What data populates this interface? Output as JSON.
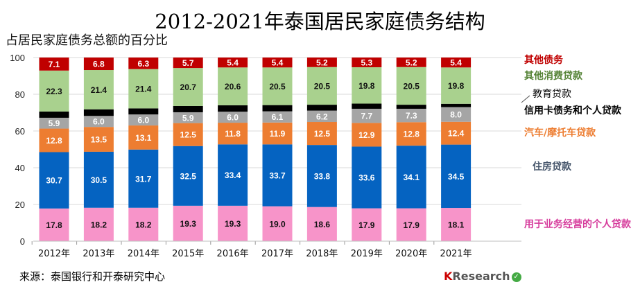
{
  "chart_data": {
    "type": "bar",
    "stacked": true,
    "title": "2012-2021年泰国居民家庭债务结构",
    "ylabel": "占居民家庭债务总额的百分比",
    "ylim": [
      0,
      100
    ],
    "yticks": [
      0,
      20,
      40,
      60,
      80,
      100
    ],
    "grid": true,
    "legend_position": "right",
    "categories": [
      "2012年",
      "2013年",
      "2014年",
      "2015年",
      "2016年",
      "2017年",
      "2018年",
      "2019年",
      "2020年",
      "2021年"
    ],
    "series": [
      {
        "name": "用于业务经营的个人贷款",
        "color": "#f794c9",
        "label_color": "#111111",
        "values": [
          17.8,
          18.2,
          18.2,
          19.3,
          19.3,
          19.0,
          18.6,
          17.9,
          17.9,
          18.1
        ]
      },
      {
        "name": "住房贷款",
        "color": "#0563c1",
        "label_color": "#ffffff",
        "values": [
          30.7,
          30.5,
          31.7,
          32.5,
          33.4,
          33.7,
          33.8,
          33.6,
          34.1,
          34.5
        ]
      },
      {
        "name": "汽车/摩托车贷款",
        "color": "#ed7d31",
        "label_color": "#ffffff",
        "values": [
          12.8,
          13.5,
          13.1,
          12.5,
          11.8,
          11.9,
          12.5,
          12.9,
          12.8,
          12.4
        ]
      },
      {
        "name": "信用卡债务和个人贷款",
        "color": "#a5a5a5",
        "label_color": "#ffffff",
        "values": [
          5.9,
          6.0,
          6.0,
          5.9,
          6.0,
          6.1,
          6.2,
          7.7,
          7.3,
          8.0
        ]
      },
      {
        "name": "教育贷款",
        "color": "#000000",
        "label_color": "",
        "values": [
          3.4,
          3.6,
          3.3,
          3.4,
          3.5,
          3.4,
          3.2,
          2.8,
          2.2,
          1.8
        ],
        "labels_shown": false
      },
      {
        "name": "其他消费贷款",
        "color": "#a9d18e",
        "label_color": "#111111",
        "values": [
          22.3,
          21.4,
          21.4,
          20.7,
          20.6,
          20.5,
          20.5,
          19.8,
          20.5,
          19.8
        ]
      },
      {
        "name": "其他债务",
        "color": "#c00000",
        "label_color": "#ffffff",
        "values": [
          7.1,
          6.8,
          6.3,
          5.7,
          5.4,
          5.4,
          5.2,
          5.3,
          5.2,
          5.4
        ]
      }
    ],
    "legend": [
      {
        "name": "其他债务",
        "color": "#c00000"
      },
      {
        "name": "其他消费贷款",
        "color": "#548235"
      },
      {
        "name": "教育贷款",
        "color": "#000000"
      },
      {
        "name": "信用卡债务和个人贷款",
        "color": "#000000"
      },
      {
        "name": "汽车/摩托车贷款",
        "color": "#ed7d31"
      },
      {
        "name": "住房贷款",
        "color": "#44546a"
      },
      {
        "name": "用于业务经营的个人贷款",
        "color": "#d63c9c"
      }
    ]
  },
  "source": "来源：泰国银行和开泰研究中心",
  "logo": {
    "k": "K",
    "rest": "Research"
  }
}
